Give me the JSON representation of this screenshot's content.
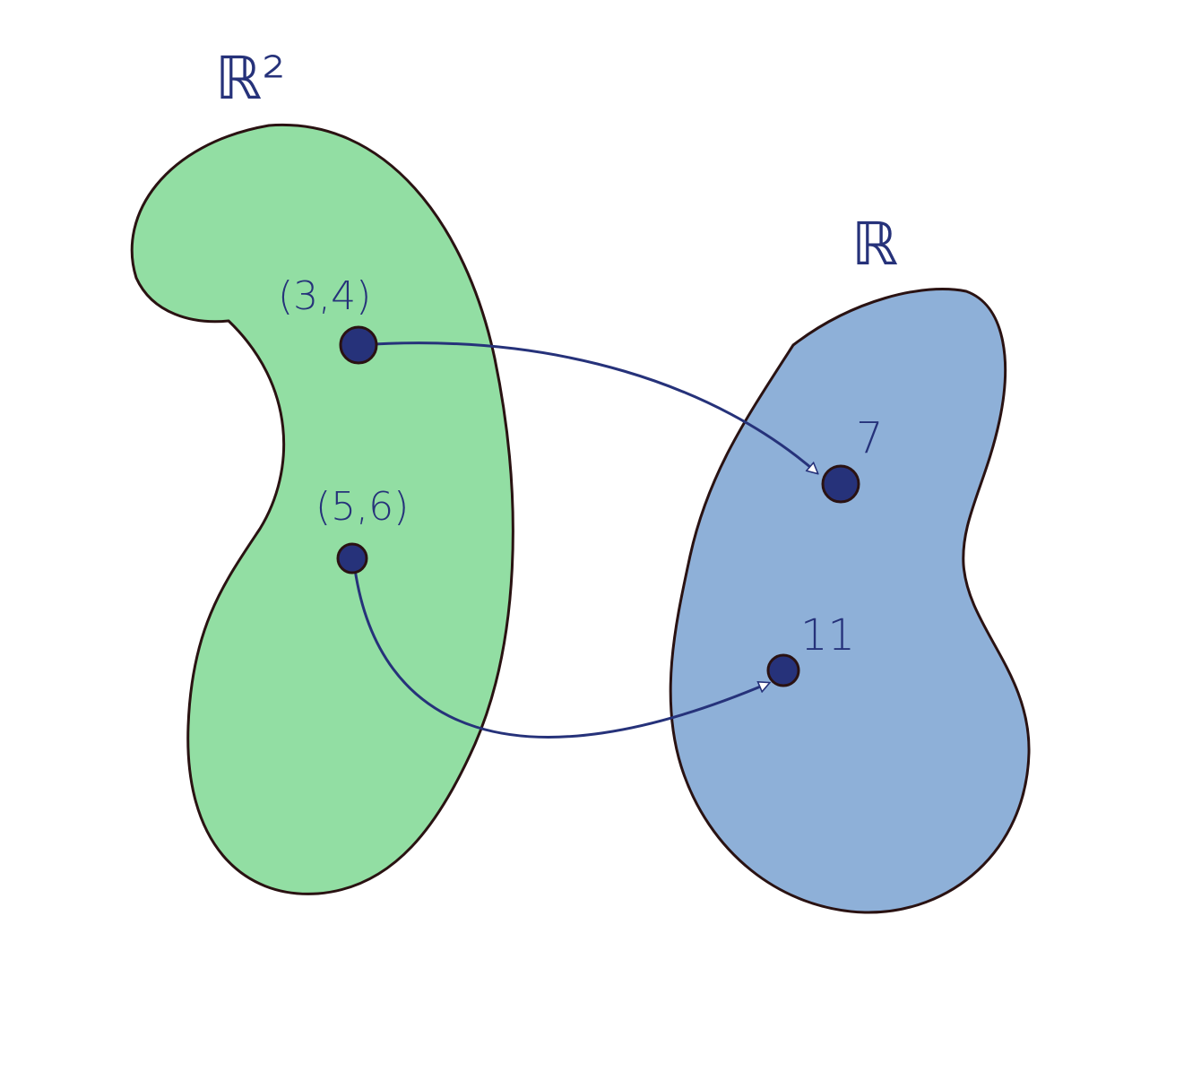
{
  "diagram": {
    "domain_label": "ℝ²",
    "codomain_label": "ℝ",
    "colors": {
      "domain_fill": "#92dea3",
      "codomain_fill": "#8eb0d8",
      "outline": "#2a1212",
      "ink": "#26327a",
      "point_fill": "#26327a"
    },
    "mappings": [
      {
        "input": "(3,4)",
        "output": "7"
      },
      {
        "input": "(5,6)",
        "output": "11"
      }
    ]
  }
}
